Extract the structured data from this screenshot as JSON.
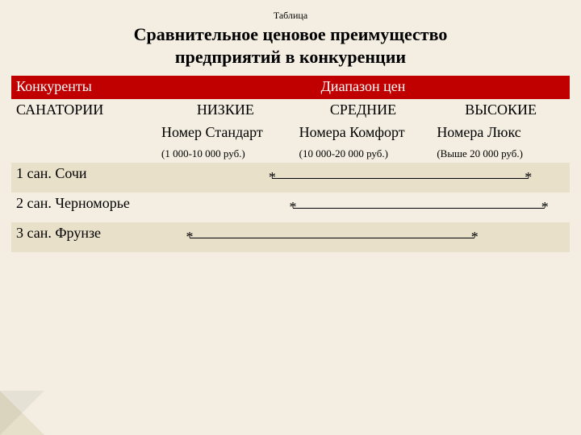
{
  "colors": {
    "page_bg": "#f3eee1",
    "band_bg": "#e9e0c9",
    "header_bg": "#c00000",
    "header_fg": "#ffffff",
    "text": "#000000"
  },
  "supertitle": "Таблица",
  "title_line1": "Сравнительное ценовое преимущество",
  "title_line2": "предприятий в конкуренции",
  "header": {
    "competitors": "Конкуренты",
    "price_range": "Диапазон  цен"
  },
  "row_sanatoriums": "САНАТОРИИ",
  "tiers": {
    "low": {
      "title": "НИЗКИЕ",
      "room": "Номер Стандарт",
      "range": "(1 000-10 000 руб.)"
    },
    "mid": {
      "title": "СРЕДНИЕ",
      "room": "Номера Комфорт",
      "range": "(10 000-20 000 руб.)"
    },
    "high": {
      "title": "ВЫСОКИЕ",
      "room": "Номера Люкс",
      "range": "(Выше 20 000 руб.)"
    }
  },
  "rows": {
    "r1": {
      "label": "1 сан. Сочи",
      "start_pct": 28,
      "end_pct": 90
    },
    "r2": {
      "label": "2 сан. Черноморье",
      "start_pct": 33,
      "end_pct": 94
    },
    "r3": {
      "label": "3 сан. Фрунзе",
      "start_pct": 8,
      "end_pct": 77
    }
  }
}
